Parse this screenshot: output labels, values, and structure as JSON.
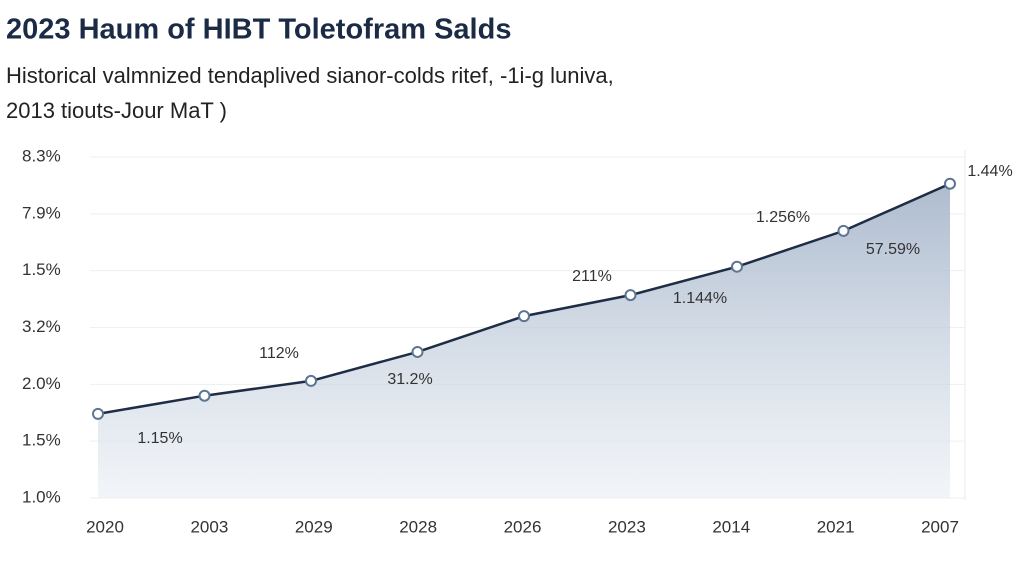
{
  "chart_data": {
    "type": "area",
    "title": "2023 Haum of HIBT Toletofram Salds",
    "subtitle": [
      "Historical valmnized tendaplived sianor-colds ritef, -1i-g luniva,",
      "2013 tiouts-Jour MaT )"
    ],
    "categories": [
      "2020",
      "2003",
      "2029",
      "2028",
      "2026",
      "2023",
      "2014",
      "2021",
      "2007"
    ],
    "values": [
      1.48,
      1.8,
      2.06,
      2.57,
      3.2,
      3.57,
      4.07,
      4.7,
      5.53
    ],
    "color": "#1e2d45",
    "fill": "#a9b8cc",
    "ylim": [
      0,
      6
    ],
    "y_categories": [
      "1.0%",
      "1.5%",
      "2.0%",
      "3.2%",
      "1.5%",
      "7.9%",
      "8.3%"
    ],
    "annotations": [
      "1.15%",
      "112%",
      "31.2%",
      "211%",
      "1.144%",
      "1.256%",
      "57.59%",
      "1.44%"
    ],
    "grid": true
  }
}
